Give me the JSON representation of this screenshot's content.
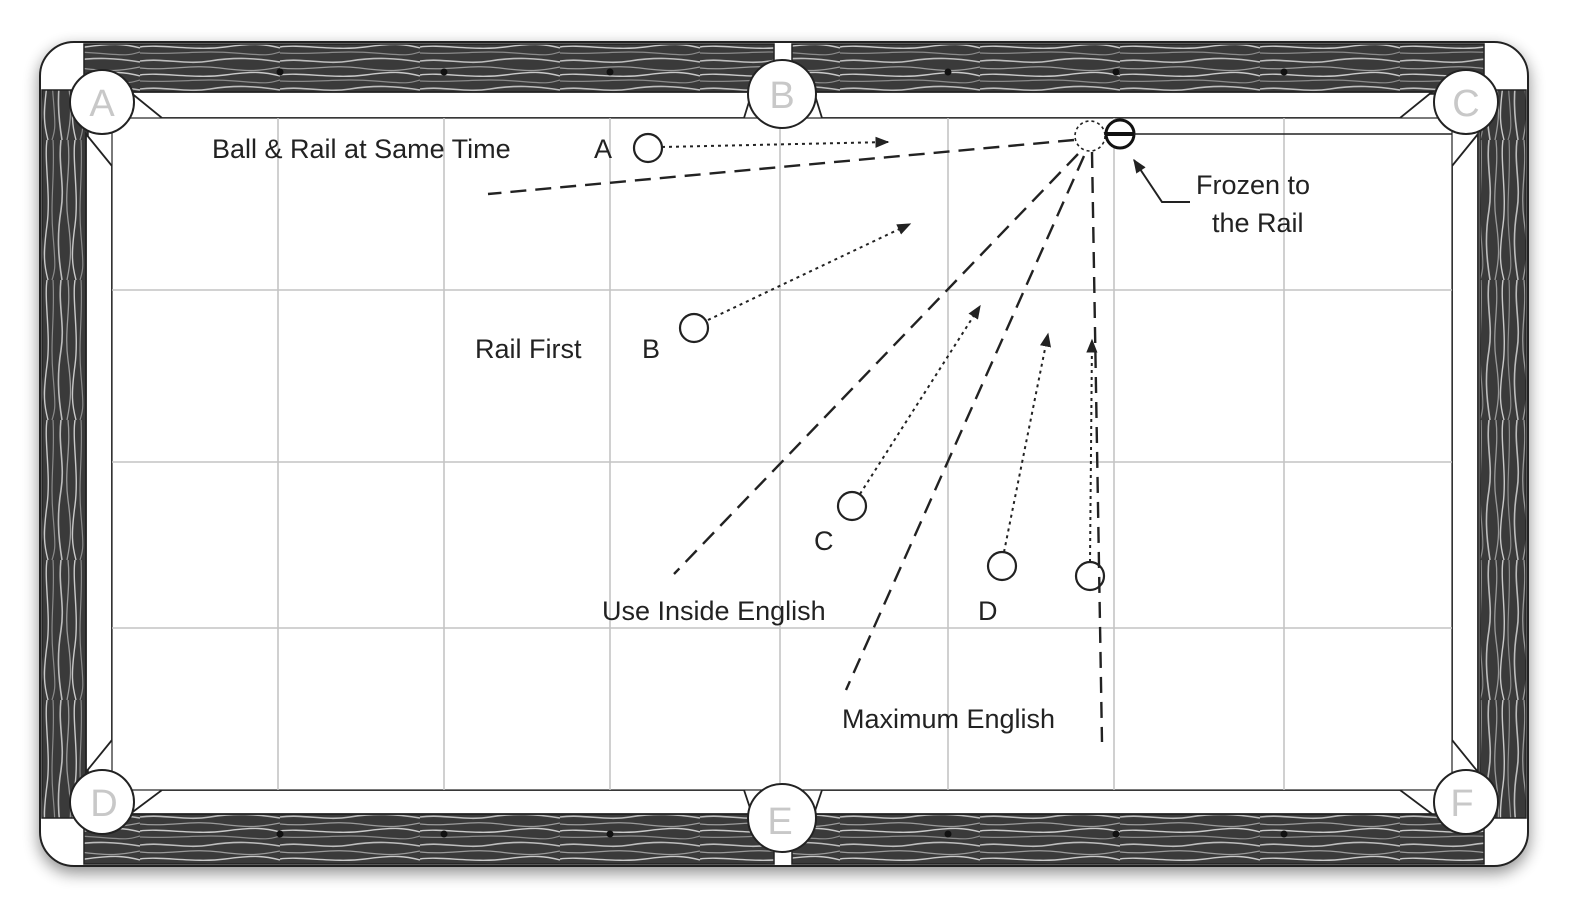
{
  "pockets": [
    "A",
    "B",
    "C",
    "D",
    "E",
    "F"
  ],
  "labels": {
    "ball_rail_same_time": "Ball & Rail at Same Time",
    "position_a": "A",
    "rail_first": "Rail First",
    "position_b": "B",
    "position_c": "C",
    "position_d": "D",
    "use_inside_english": "Use Inside English",
    "maximum_english": "Maximum English",
    "frozen_line1": "Frozen to",
    "frozen_line2": "the Rail"
  },
  "colors": {
    "rail_wood": "#3d3d3d",
    "cushion": "#ffffff",
    "felt": "#ffffff",
    "grid": "#c4c4c4",
    "ink": "#222222",
    "pocket_label": "#c8c8c8"
  }
}
